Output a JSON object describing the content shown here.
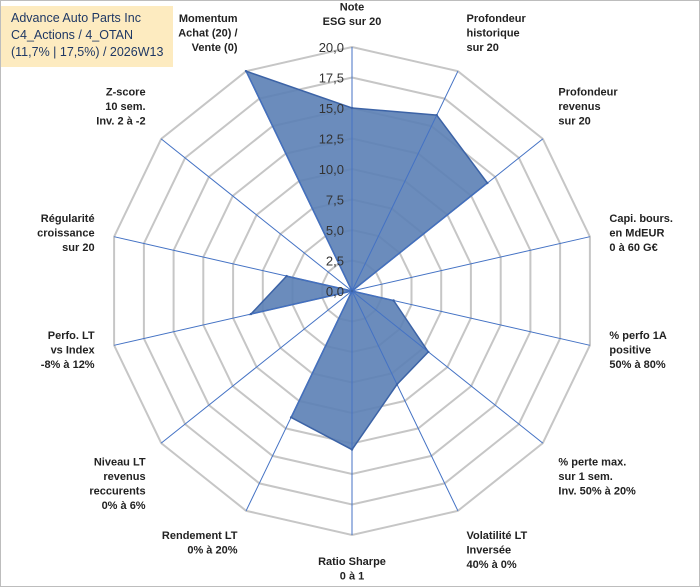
{
  "title_box": {
    "line1": "Advance Auto Parts Inc",
    "line2": "C4_Actions / 4_OTAN",
    "line3": "(11,7% | 17,5%) / 2026W13"
  },
  "colors": {
    "fill": "#5b7fb5",
    "stroke": "#3c63a6",
    "spoke": "#4472c4",
    "grid": "#c6c6c6",
    "title_bg": "#fdebc0",
    "title_text": "#1f3864"
  },
  "chart_data": {
    "type": "radar",
    "title": "Advance Auto Parts Inc",
    "r_range": [
      0,
      20
    ],
    "ticks": [
      "0,0",
      "2,5",
      "5,0",
      "7,5",
      "10,0",
      "12,5",
      "15,0",
      "17,5",
      "20,0"
    ],
    "grid": true,
    "categories": [
      [
        "Note",
        "ESG sur 20"
      ],
      [
        "Profondeur",
        "historique",
        "sur 20"
      ],
      [
        "Profondeur",
        "revenus",
        "sur 20"
      ],
      [
        "Capi. bours.",
        "en MdEUR",
        "0 à 60 G€"
      ],
      [
        "% perfo 1A",
        "positive",
        "50% à 80%"
      ],
      [
        "% perte max.",
        "sur 1 sem.",
        "Inv. 50% à 20%"
      ],
      [
        "Volatilité LT",
        "Inversée",
        "40% à 0%"
      ],
      [
        "Ratio Sharpe",
        "0 à 1"
      ],
      [
        "Rendement LT",
        "0% à 20%"
      ],
      [
        "Niveau LT",
        "revenus",
        "reccurents",
        "0% à 6%"
      ],
      [
        "Perfo. LT",
        "vs Index",
        "-8% à 12%"
      ],
      [
        "Régularité",
        "croissance",
        "sur 20"
      ],
      [
        "Z-score",
        "10 sem.",
        "Inv. 2 à -2"
      ],
      [
        "Momentum",
        "Achat (20) /",
        "Vente (0)"
      ]
    ],
    "series": [
      {
        "name": "Advance Auto Parts Inc",
        "values": [
          15.0,
          16.0,
          14.2,
          0.0,
          3.5,
          8.0,
          8.5,
          13.0,
          11.5,
          0.0,
          8.5,
          5.5,
          0.0,
          20.0
        ]
      }
    ]
  }
}
